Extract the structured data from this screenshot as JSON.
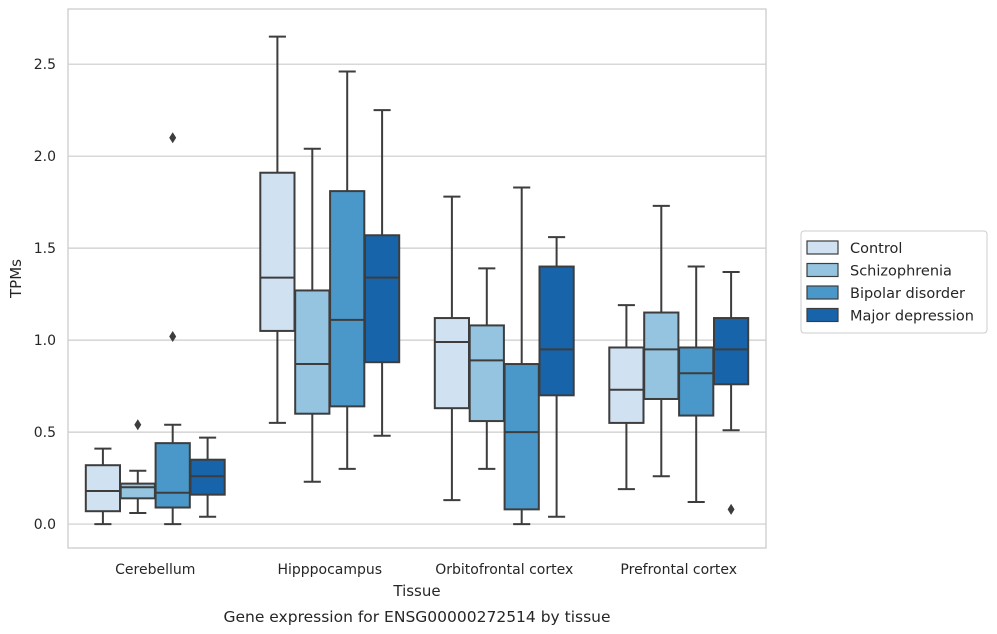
{
  "caption": "Gene expression for ENSG00000272514 by tissue",
  "chart_data": {
    "type": "box",
    "title": "",
    "xlabel": "Tissue",
    "ylabel": "TPMs",
    "ylim": [
      -0.13,
      2.8
    ],
    "yticks": [
      0.0,
      0.5,
      1.0,
      1.5,
      2.0,
      2.5
    ],
    "ytick_labels": [
      "0.0",
      "0.5",
      "1.0",
      "1.5",
      "2.0",
      "2.5"
    ],
    "grid": "horizontal",
    "legend_position": "right",
    "categories": [
      "Cerebellum",
      "Hipppocampus",
      "Orbitofrontal cortex",
      "Prefrontal cortex"
    ],
    "series": [
      {
        "name": "Control",
        "color": "#d0e1f2",
        "boxes": [
          {
            "whislo": 0.0,
            "q1": 0.07,
            "med": 0.18,
            "q3": 0.32,
            "whishi": 0.41,
            "fliers": []
          },
          {
            "whislo": 0.55,
            "q1": 1.05,
            "med": 1.34,
            "q3": 1.91,
            "whishi": 2.65,
            "fliers": []
          },
          {
            "whislo": 0.13,
            "q1": 0.63,
            "med": 0.99,
            "q3": 1.12,
            "whishi": 1.78,
            "fliers": []
          },
          {
            "whislo": 0.19,
            "q1": 0.55,
            "med": 0.73,
            "q3": 0.96,
            "whishi": 1.19,
            "fliers": []
          }
        ]
      },
      {
        "name": "Schizophrenia",
        "color": "#94c4df",
        "boxes": [
          {
            "whislo": 0.06,
            "q1": 0.14,
            "med": 0.2,
            "q3": 0.22,
            "whishi": 0.29,
            "fliers": [
              0.54
            ]
          },
          {
            "whislo": 0.23,
            "q1": 0.6,
            "med": 0.87,
            "q3": 1.27,
            "whishi": 2.04,
            "fliers": []
          },
          {
            "whislo": 0.3,
            "q1": 0.56,
            "med": 0.89,
            "q3": 1.08,
            "whishi": 1.39,
            "fliers": []
          },
          {
            "whislo": 0.26,
            "q1": 0.68,
            "med": 0.95,
            "q3": 1.15,
            "whishi": 1.73,
            "fliers": []
          }
        ]
      },
      {
        "name": "Bipolar disorder",
        "color": "#4a98c9",
        "boxes": [
          {
            "whislo": 0.0,
            "q1": 0.09,
            "med": 0.17,
            "q3": 0.44,
            "whishi": 0.54,
            "fliers": [
              1.02,
              2.1
            ]
          },
          {
            "whislo": 0.3,
            "q1": 0.64,
            "med": 1.11,
            "q3": 1.81,
            "whishi": 2.46,
            "fliers": []
          },
          {
            "whislo": 0.0,
            "q1": 0.08,
            "med": 0.5,
            "q3": 0.87,
            "whishi": 1.83,
            "fliers": []
          },
          {
            "whislo": 0.12,
            "q1": 0.59,
            "med": 0.82,
            "q3": 0.96,
            "whishi": 1.4,
            "fliers": []
          }
        ]
      },
      {
        "name": "Major depression",
        "color": "#1764ab",
        "boxes": [
          {
            "whislo": 0.04,
            "q1": 0.16,
            "med": 0.26,
            "q3": 0.35,
            "whishi": 0.47,
            "fliers": []
          },
          {
            "whislo": 0.48,
            "q1": 0.88,
            "med": 1.34,
            "q3": 1.57,
            "whishi": 2.25,
            "fliers": []
          },
          {
            "whislo": 0.04,
            "q1": 0.7,
            "med": 0.95,
            "q3": 1.4,
            "whishi": 1.56,
            "fliers": []
          },
          {
            "whislo": 0.51,
            "q1": 0.76,
            "med": 0.95,
            "q3": 1.12,
            "whishi": 1.37,
            "fliers": [
              0.08
            ]
          }
        ]
      }
    ]
  }
}
